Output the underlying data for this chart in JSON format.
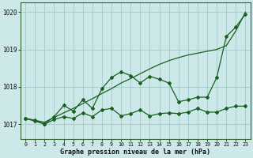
{
  "xlabel": "Graphe pression niveau de la mer (hPa)",
  "background_color": "#cde8e8",
  "grid_color": "#a8cccc",
  "line_color": "#1a6020",
  "x": [
    0,
    1,
    2,
    3,
    4,
    5,
    6,
    7,
    8,
    9,
    10,
    11,
    12,
    13,
    14,
    15,
    16,
    17,
    18,
    19,
    20,
    21,
    22,
    23
  ],
  "line1_trend": [
    1017.15,
    1017.1,
    1017.05,
    1017.18,
    1017.3,
    1017.42,
    1017.55,
    1017.68,
    1017.82,
    1017.95,
    1018.1,
    1018.22,
    1018.35,
    1018.48,
    1018.6,
    1018.7,
    1018.78,
    1018.85,
    1018.9,
    1018.95,
    1019.0,
    1019.1,
    1019.5,
    1020.0
  ],
  "line2_jagged": [
    1017.15,
    1017.1,
    1017.0,
    1017.2,
    1017.5,
    1017.35,
    1017.65,
    1017.42,
    1017.95,
    1018.25,
    1018.4,
    1018.3,
    1018.1,
    1018.28,
    1018.2,
    1018.1,
    1017.6,
    1017.65,
    1017.72,
    1017.72,
    1018.25,
    1019.35,
    1019.6,
    1019.95
  ],
  "line3_bottom": [
    1017.15,
    1017.08,
    1017.0,
    1017.12,
    1017.2,
    1017.15,
    1017.3,
    1017.2,
    1017.38,
    1017.42,
    1017.22,
    1017.28,
    1017.38,
    1017.22,
    1017.28,
    1017.3,
    1017.28,
    1017.32,
    1017.42,
    1017.32,
    1017.32,
    1017.42,
    1017.48,
    1017.48
  ],
  "ylim": [
    1016.6,
    1020.25
  ],
  "yticks": [
    1017,
    1018,
    1019,
    1020
  ],
  "xlim": [
    -0.5,
    23.5
  ]
}
